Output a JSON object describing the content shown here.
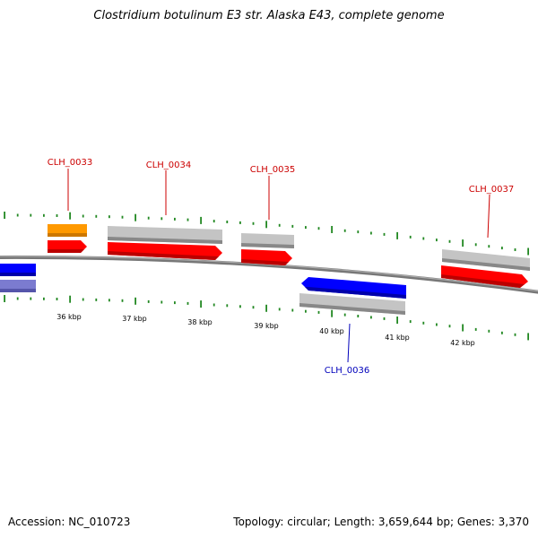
{
  "title": "Clostridium botulinum E3 str. Alaska E43, complete genome",
  "footer": {
    "accession_label": "Accession:",
    "accession": "NC_010723",
    "topology_label": "Topology:",
    "topology": "circular",
    "length_label": "Length:",
    "length": "3,659,644 bp",
    "genes_label": "Genes:",
    "genes": "3,370"
  },
  "colors": {
    "forward_gene": "#ff0000",
    "reverse_gene": "#0000ff",
    "forward_label": "#cc0000",
    "reverse_label": "#0000bb",
    "cds_gray": "#c0c0c0",
    "cds_orange": "#ff9900",
    "cds_lavender": "#7777cc",
    "backbone": "#888888",
    "ticks": "#228822"
  },
  "scale": {
    "labels": [
      "36 kbp",
      "37 kbp",
      "38 kbp",
      "39 kbp",
      "40 kbp",
      "41 kbp",
      "42 kbp"
    ]
  },
  "genes": [
    {
      "name": "",
      "strand": "reverse"
    },
    {
      "name": "CLH_0033",
      "strand": "forward"
    },
    {
      "name": "CLH_0034",
      "strand": "forward"
    },
    {
      "name": "CLH_0035",
      "strand": "forward"
    },
    {
      "name": "CLH_0036",
      "strand": "reverse"
    },
    {
      "name": "CLH_0037",
      "strand": "forward"
    }
  ]
}
